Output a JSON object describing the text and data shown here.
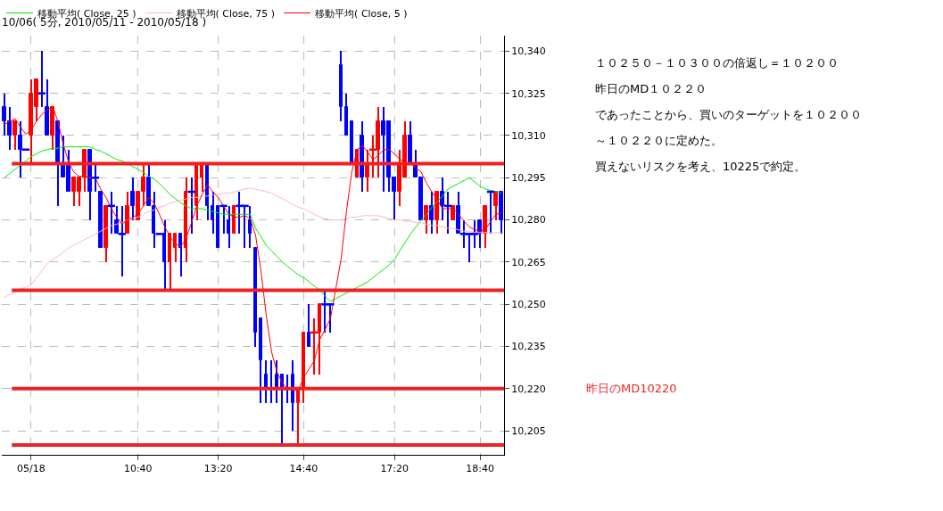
{
  "chart_data": {
    "type": "candlestick",
    "title": "10/06( 5分, 2010/05/11 - 2010/05/18 )",
    "categories": [
      null,
      null,
      null,
      null,
      null,
      "05/18",
      null,
      null,
      null,
      null,
      null,
      null,
      null,
      null,
      null,
      null,
      null,
      null,
      null,
      null,
      null,
      null,
      null,
      null,
      null,
      "10:40",
      null,
      null,
      null,
      null,
      null,
      null,
      null,
      null,
      null,
      null,
      null,
      null,
      null,
      null,
      "13:20",
      null,
      null,
      null,
      null,
      null,
      null,
      null,
      null,
      null,
      null,
      null,
      null,
      null,
      null,
      null,
      "14:40",
      null,
      null,
      null,
      null,
      null,
      null,
      null,
      null,
      null,
      null,
      null,
      null,
      null,
      null,
      null,
      null,
      "17:20",
      null,
      null,
      null,
      null,
      null,
      null,
      null,
      null,
      null,
      null,
      null,
      null,
      null,
      null,
      null,
      "18:40",
      null,
      null,
      null,
      null
    ],
    "ohlc": [
      [
        10320,
        10325,
        10310,
        10315
      ],
      [
        10315,
        10320,
        10305,
        10310
      ],
      [
        10310,
        10315,
        10305,
        10315
      ],
      [
        10310,
        10315,
        10295,
        10305
      ],
      [
        10305,
        10305,
        10305,
        10305
      ],
      [
        10310,
        10330,
        10300,
        10325
      ],
      [
        10320,
        10330,
        10315,
        10330
      ],
      [
        10325,
        10340,
        10320,
        10325
      ],
      [
        10320,
        10330,
        10310,
        10310
      ],
      [
        10310,
        10320,
        10305,
        10320
      ],
      [
        10315,
        10315,
        10285,
        10300
      ],
      [
        10300,
        10310,
        10295,
        10295
      ],
      [
        10300,
        10305,
        10290,
        10290
      ],
      [
        10290,
        10295,
        10285,
        10295
      ],
      [
        10290,
        10295,
        10285,
        10295
      ],
      [
        10295,
        10305,
        10290,
        10305
      ],
      [
        10305,
        10305,
        10280,
        10290
      ],
      [
        10295,
        10300,
        10290,
        10295
      ],
      [
        10290,
        10290,
        10270,
        10270
      ],
      [
        10270,
        10285,
        10265,
        10285
      ],
      [
        10285,
        10290,
        10275,
        10285
      ],
      [
        10280,
        10285,
        10275,
        10275
      ],
      [
        10275,
        10285,
        10260,
        10275
      ],
      [
        10275,
        10290,
        10275,
        10285
      ],
      [
        10290,
        10295,
        10280,
        10285
      ],
      [
        10280,
        10290,
        10280,
        10290
      ],
      [
        10290,
        10300,
        10285,
        10295
      ],
      [
        10295,
        10300,
        10285,
        10285
      ],
      [
        10285,
        10290,
        10270,
        10275
      ],
      [
        10275,
        10275,
        10275,
        10275
      ],
      [
        10275,
        10280,
        10255,
        10265
      ],
      [
        10265,
        10275,
        10255,
        10275
      ],
      [
        10270,
        10275,
        10265,
        10275
      ],
      [
        10275,
        10275,
        10260,
        10270
      ],
      [
        10270,
        10295,
        10265,
        10290
      ],
      [
        10290,
        10295,
        10275,
        10290
      ],
      [
        10285,
        10300,
        10280,
        10300
      ],
      [
        10295,
        10300,
        10290,
        10300
      ],
      [
        10300,
        10300,
        10280,
        10285
      ],
      [
        10285,
        10290,
        10275,
        10280
      ],
      [
        10285,
        10285,
        10270,
        10270
      ],
      [
        10285,
        10285,
        10275,
        10285
      ],
      [
        10280,
        10285,
        10270,
        10275
      ],
      [
        10275,
        10285,
        10275,
        10285
      ],
      [
        10285,
        10290,
        10275,
        10285
      ],
      [
        10285,
        10285,
        10270,
        10285
      ],
      [
        10280,
        10285,
        10270,
        10275
      ],
      [
        10270,
        10270,
        10235,
        10240
      ],
      [
        10245,
        10245,
        10215,
        10230
      ],
      [
        10225,
        10230,
        10215,
        10220
      ],
      [
        10220,
        10230,
        10215,
        10220
      ],
      [
        10225,
        10230,
        10215,
        10220
      ],
      [
        10225,
        10225,
        10200,
        10220
      ],
      [
        10220,
        10225,
        10215,
        10220
      ],
      [
        10225,
        10230,
        10205,
        10215
      ],
      [
        10215,
        10220,
        10200,
        10220
      ],
      [
        10220,
        10240,
        10215,
        10240
      ],
      [
        10240,
        10250,
        10235,
        10235
      ],
      [
        10240,
        10245,
        10225,
        10240
      ],
      [
        10240,
        10250,
        10225,
        10250
      ],
      [
        10250,
        10255,
        10240,
        10250
      ],
      [
        10250,
        10250,
        10240,
        10250
      ],
      null,
      [
        10335,
        10340,
        10315,
        10320
      ],
      [
        10320,
        10325,
        10310,
        10310
      ],
      [
        10315,
        10315,
        10300,
        10300
      ],
      [
        10295,
        10305,
        10295,
        10305
      ],
      [
        10310,
        10315,
        10290,
        10295
      ],
      [
        10295,
        10305,
        10290,
        10300
      ],
      [
        10305,
        10310,
        10295,
        10305
      ],
      [
        10305,
        10320,
        10295,
        10315
      ],
      [
        10315,
        10320,
        10290,
        10310
      ],
      [
        10315,
        10315,
        10290,
        10295
      ],
      [
        10295,
        10295,
        10280,
        10290
      ],
      [
        10290,
        10305,
        10285,
        10300
      ],
      [
        10295,
        10315,
        10295,
        10310
      ],
      [
        10310,
        10315,
        10300,
        10300
      ],
      [
        10300,
        10305,
        10295,
        10295
      ],
      [
        10295,
        10295,
        10280,
        10280
      ],
      [
        10280,
        10285,
        10275,
        10285
      ],
      [
        10285,
        10290,
        10275,
        10280
      ],
      [
        10280,
        10290,
        10275,
        10290
      ],
      [
        10290,
        10295,
        10280,
        10285
      ],
      [
        10285,
        10290,
        10275,
        10285
      ],
      [
        10280,
        10285,
        10280,
        10285
      ],
      [
        10285,
        10290,
        10275,
        10275
      ],
      [
        10275,
        10280,
        10270,
        10275
      ],
      [
        10275,
        10275,
        10265,
        10275
      ],
      [
        10275,
        10280,
        10270,
        10275
      ],
      [
        10280,
        10280,
        10270,
        10275
      ],
      [
        10275,
        10285,
        10270,
        10285
      ],
      [
        10290,
        10290,
        10275,
        10290
      ],
      [
        10285,
        10290,
        10280,
        10290
      ],
      [
        10290,
        10290,
        10275,
        10280
      ]
    ],
    "colors": [
      "#0000ff",
      "#0000ff",
      "#ff0000",
      "#0000ff",
      "#0000ff",
      "#ff0000",
      "#ff0000",
      "#0000ff",
      "#0000ff",
      "#ff0000",
      "#0000ff",
      "#0000ff",
      "#0000ff",
      "#ff0000",
      "#ff0000",
      "#ff0000",
      "#0000ff",
      "#0000ff",
      "#0000ff",
      "#ff0000",
      "#0000ff",
      "#0000ff",
      "#0000ff",
      "#ff0000",
      "#0000ff",
      "#ff0000",
      "#ff0000",
      "#0000ff",
      "#0000ff",
      "#0000ff",
      "#0000ff",
      "#ff0000",
      "#ff0000",
      "#0000ff",
      "#ff0000",
      "#0000ff",
      "#ff0000",
      "#ff0000",
      "#0000ff",
      "#0000ff",
      "#0000ff",
      "#0000ff",
      "#0000ff",
      "#ff0000",
      "#0000ff",
      "#0000ff",
      "#0000ff",
      "#0000ff",
      "#0000ff",
      "#0000ff",
      "#0000ff",
      "#0000ff",
      "#0000ff",
      "#0000ff",
      "#0000ff",
      "#ff0000",
      "#ff0000",
      "#0000ff",
      "#ff0000",
      "#ff0000",
      "#0000ff",
      "#0000ff",
      null,
      "#0000ff",
      "#0000ff",
      "#0000ff",
      "#ff0000",
      "#0000ff",
      "#ff0000",
      "#ff0000",
      "#ff0000",
      "#0000ff",
      "#0000ff",
      "#0000ff",
      "#ff0000",
      "#ff0000",
      "#0000ff",
      "#0000ff",
      "#0000ff",
      "#ff0000",
      "#0000ff",
      "#ff0000",
      "#0000ff",
      "#0000ff",
      "#ff0000",
      "#0000ff",
      "#0000ff",
      "#0000ff",
      "#0000ff",
      "#0000ff",
      "#ff0000",
      "#0000ff",
      "#ff0000",
      "#0000ff"
    ],
    "series": [
      {
        "name": "移動平均( Close, 25 )",
        "type": "line",
        "color": "#00ee00",
        "values": [
          10295,
          10296.5,
          10298,
          10299.5,
          10301,
          10302.5,
          10303.5,
          10304.5,
          10305,
          10305.5,
          10305.5,
          10306,
          10306,
          10306,
          10306,
          10306,
          10306,
          10305,
          10304.5,
          10303.5,
          10302.5,
          10301.5,
          10301,
          10300,
          10299,
          10298,
          10297,
          10295.5,
          10294.5,
          10293,
          10291,
          10289,
          10287.5,
          10286,
          10285,
          10284,
          10284,
          10284,
          10283.5,
          10283,
          10282.5,
          10282,
          10282,
          10282,
          10282,
          10282,
          10282,
          10277,
          10274,
          10271,
          10269,
          10267,
          10265,
          10263.5,
          10262,
          10260.5,
          10259.5,
          10258,
          10256.5,
          10255,
          10253,
          10251,
          null,
          10253,
          10254,
          10255,
          10256,
          10257,
          10258,
          10259.5,
          10261,
          10262.5,
          10264,
          10266,
          10269,
          10272,
          10275,
          10277.5,
          10280,
          10282,
          10284.5,
          10286.5,
          10288.5,
          10291,
          10292,
          10293,
          10294,
          10295,
          10293.5,
          10292,
          10291,
          10290.5,
          10290,
          10289.5
        ]
      },
      {
        "name": "移動平均( Close, 75 )",
        "type": "line",
        "color": "#ffb6c1",
        "values": [
          10252.5,
          10253.5,
          10254.5,
          10255.5,
          10256,
          10257,
          10259.5,
          10262,
          10264.5,
          10266,
          10267,
          10268.5,
          10270,
          10271,
          10272,
          10273,
          10274,
          10275,
          10276,
          10277,
          10278,
          10278.5,
          10279,
          10280,
          10280.5,
          10281,
          10282,
          10283,
          10283.5,
          10284.5,
          10285,
          10286,
          10286.5,
          10287,
          10287.5,
          10288,
          10288,
          10288.5,
          10288.5,
          10289,
          10289,
          10289.5,
          10289.5,
          10290,
          10290.5,
          10291,
          10291.3,
          10291,
          10290.5,
          10290,
          10289.5,
          10288.5,
          10287.5,
          10286.5,
          10285.5,
          10284.5,
          10284,
          10283,
          10282,
          10281,
          10280.5,
          10280,
          null,
          10280,
          10280.5,
          10281,
          10281,
          10281.5,
          10281.5,
          10281.5,
          10281.5,
          10281,
          10280.5,
          10280,
          10280,
          10279.5,
          10279.5,
          10279,
          10279,
          10278.5,
          10278,
          10278,
          10277.5,
          10277,
          10277,
          10276.5,
          10276,
          10276,
          10275.5,
          10275.5,
          10275.5,
          10275.5,
          10275.5,
          10275.5
        ]
      },
      {
        "name": "移動平均( Close, 5 )",
        "type": "line",
        "color": "#ff0000",
        "values": [
          10314,
          10315,
          10316,
          10313,
          10310.5,
          10312,
          10315,
          10317.5,
          10319,
          10320.5,
          10315,
          10307,
          10300.5,
          10297,
          10295.5,
          10295.5,
          10295,
          10295,
          10291,
          10288,
          10284,
          10281,
          10278.5,
          10280,
          10281,
          10282,
          10285,
          10288,
          10286,
          10282,
          10277.5,
          10274,
          10271.5,
          10270.5,
          10273.5,
          10279,
          10285,
          10289,
          10292.5,
          10290,
          10288,
          10285,
          10282,
          10281,
          10281,
          10281.5,
          10280.5,
          10274.5,
          10262,
          10246,
          10233,
          10226,
          10222,
          10220,
          10219.5,
          10219.5,
          10224,
          10227,
          10230,
          10237.5,
          10241,
          10245,
          null,
          10266,
          10283,
          10297,
          10305,
          10306.5,
          10304,
          10301.5,
          10303,
          10305,
          10305,
          10303.5,
          10301.5,
          10300.5,
          10300,
          10298.5,
          10297,
          10293,
          10290,
          10287,
          10284,
          10284,
          10284,
          10282,
          10279.5,
          10277.5,
          10276.5,
          10276,
          10276.5,
          10279.5,
          10282,
          10282.5
        ]
      }
    ],
    "ylim": [
      10196.5,
      10345.5
    ],
    "yticks": [
      {
        "value": 10205,
        "label": "10,205"
      },
      {
        "value": 10220,
        "label": "10,220"
      },
      {
        "value": 10235,
        "label": "10,235"
      },
      {
        "value": 10250,
        "label": "10,250"
      },
      {
        "value": 10265,
        "label": "10,265"
      },
      {
        "value": 10280,
        "label": "10,280"
      },
      {
        "value": 10295,
        "label": "10,295"
      },
      {
        "value": 10310,
        "label": "10,310"
      },
      {
        "value": 10325,
        "label": "10,325"
      },
      {
        "value": 10340,
        "label": "10,340"
      }
    ],
    "grid": true,
    "legend": "top left",
    "ref_lines": [
      {
        "axis": "y",
        "value": 10300,
        "color": "#ee2222"
      },
      {
        "axis": "y",
        "value": 10255,
        "color": "#ee2222"
      },
      {
        "axis": "y",
        "value": 10220,
        "label": "昨日のMD10220",
        "color": "#ee2222"
      },
      {
        "axis": "y",
        "value": 10200,
        "color": "#ee2222"
      }
    ],
    "annotations": [
      "１０２５０－１０３００の倍返し＝１０２００",
      "昨日のMD１０２２０",
      "であったことから、買いのターゲットを１０２００",
      "～１０２２０に定めた。",
      "買えないリスクを考え、10225で約定。"
    ]
  }
}
